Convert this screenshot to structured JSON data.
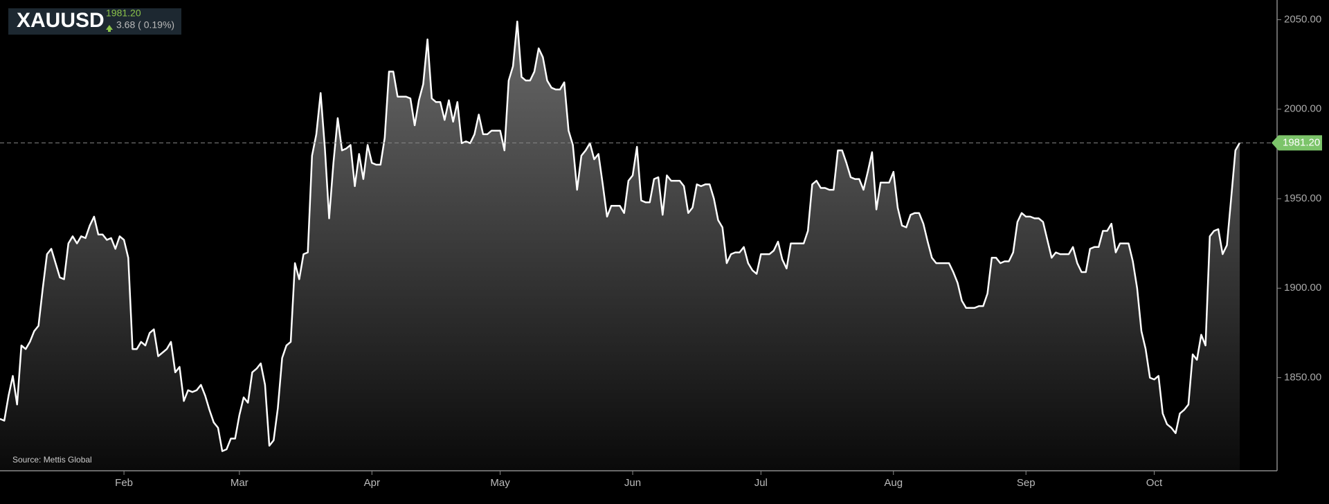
{
  "chart_data": {
    "type": "area",
    "title": "XAUUSD",
    "last_price": {
      "value": 1981.2,
      "label": "1981.20"
    },
    "change": "3.68 ( 0.19%)",
    "source": "Source: Mettis Global",
    "color": "#ffffff",
    "categories": [
      null,
      null,
      null,
      null,
      null,
      null,
      null,
      null,
      null,
      null,
      null,
      null,
      null,
      null,
      null,
      null,
      null,
      null,
      null,
      null,
      null,
      null,
      null,
      null,
      null,
      null,
      null,
      null,
      null,
      "Feb",
      null,
      null,
      null,
      null,
      null,
      null,
      null,
      null,
      null,
      null,
      null,
      null,
      null,
      null,
      null,
      null,
      null,
      null,
      null,
      null,
      null,
      null,
      null,
      null,
      null,
      null,
      "Mar",
      null,
      null,
      null,
      null,
      null,
      null,
      null,
      null,
      null,
      null,
      null,
      null,
      null,
      null,
      null,
      null,
      null,
      null,
      null,
      null,
      null,
      null,
      null,
      null,
      null,
      null,
      null,
      null,
      null,
      null,
      "Apr",
      null,
      null,
      null,
      null,
      null,
      null,
      null,
      null,
      null,
      null,
      null,
      null,
      null,
      null,
      null,
      null,
      null,
      null,
      null,
      null,
      null,
      null,
      null,
      null,
      null,
      null,
      null,
      null,
      null,
      "May",
      null,
      null,
      null,
      null,
      null,
      null,
      null,
      null,
      null,
      null,
      null,
      null,
      null,
      null,
      null,
      null,
      null,
      null,
      null,
      null,
      null,
      null,
      null,
      null,
      null,
      null,
      null,
      null,
      null,
      null,
      "Jun",
      null,
      null,
      null,
      null,
      null,
      null,
      null,
      null,
      null,
      null,
      null,
      null,
      null,
      null,
      null,
      null,
      null,
      null,
      null,
      null,
      null,
      null,
      null,
      null,
      null,
      null,
      null,
      null,
      null,
      "Jul",
      null,
      null,
      null,
      null,
      null,
      null,
      null,
      null,
      null,
      null,
      null,
      null,
      null,
      null,
      null,
      null,
      null,
      null,
      null,
      null,
      null,
      null,
      null,
      null,
      null,
      null,
      null,
      null,
      null,
      null,
      "Aug",
      null,
      null,
      null,
      null,
      null,
      null,
      null,
      null,
      null,
      null,
      null,
      null,
      null,
      null,
      null,
      null,
      null,
      null,
      null,
      null,
      null,
      null,
      null,
      null,
      null,
      null,
      null,
      null,
      null,
      null,
      "Sep",
      null,
      null,
      null,
      null,
      null,
      null,
      null,
      null,
      null,
      null,
      null,
      null,
      null,
      null,
      null,
      null,
      null,
      null,
      null,
      null,
      null,
      null,
      null,
      null,
      null,
      null,
      null,
      null,
      null,
      "Oct",
      null,
      null,
      null,
      null,
      null,
      null,
      null,
      null,
      null,
      null,
      null,
      null,
      null,
      null,
      null,
      null,
      null,
      null,
      null,
      null
    ],
    "values": [
      1827,
      1826,
      1840,
      1851,
      1835,
      1868,
      1866,
      1870,
      1876,
      1879,
      1900,
      1919,
      1922,
      1914,
      1906,
      1905,
      1925,
      1929,
      1925,
      1929,
      1928,
      1935,
      1940,
      1930,
      1930,
      1927,
      1928,
      1922,
      1929,
      1927,
      1917,
      1866,
      1866,
      1870,
      1868,
      1875,
      1877,
      1862,
      1864,
      1866,
      1870,
      1853,
      1856,
      1837,
      1843,
      1842,
      1843,
      1846,
      1840,
      1832,
      1825,
      1822,
      1809,
      1810,
      1816,
      1816,
      1829,
      1839,
      1836,
      1853,
      1855,
      1858,
      1846,
      1812,
      1815,
      1833,
      1861,
      1868,
      1870,
      1914,
      1905,
      1919,
      1920,
      1974,
      1986,
      2009,
      1978,
      1939,
      1970,
      1995,
      1977,
      1978,
      1980,
      1957,
      1975,
      1961,
      1980,
      1970,
      1969,
      1969,
      1984,
      2021,
      2021,
      2007,
      2007,
      2007,
      2006,
      1991,
      2005,
      2014,
      2039,
      2006,
      2004,
      2004,
      1994,
      2005,
      1993,
      2004,
      1981,
      1982,
      1981,
      1986,
      1997,
      1986,
      1986,
      1988,
      1988,
      1988,
      1977,
      2016,
      2024,
      2049,
      2018,
      2016,
      2016,
      2021,
      2034,
      2029,
      2016,
      2012,
      2011,
      2011,
      2015,
      1988,
      1980,
      1955,
      1974,
      1977,
      1981,
      1972,
      1975,
      1958,
      1940,
      1946,
      1946,
      1946,
      1942,
      1960,
      1963,
      1979,
      1949,
      1948,
      1948,
      1961,
      1962,
      1941,
      1963,
      1960,
      1960,
      1960,
      1957,
      1942,
      1945,
      1958,
      1957,
      1958,
      1958,
      1950,
      1938,
      1934,
      1914,
      1919,
      1920,
      1920,
      1923,
      1914,
      1910,
      1908,
      1919,
      1919,
      1919,
      1921,
      1926,
      1916,
      1911,
      1925,
      1925,
      1925,
      1925,
      1932,
      1958,
      1960,
      1956,
      1956,
      1955,
      1955,
      1977,
      1977,
      1970,
      1962,
      1961,
      1961,
      1955,
      1965,
      1976,
      1944,
      1959,
      1959,
      1959,
      1965,
      1945,
      1935,
      1934,
      1941,
      1942,
      1942,
      1936,
      1926,
      1917,
      1914,
      1914,
      1914,
      1914,
      1909,
      1903,
      1893,
      1889,
      1889,
      1889,
      1890,
      1890,
      1897,
      1917,
      1917,
      1914,
      1915,
      1915,
      1920,
      1937,
      1942,
      1940,
      1940,
      1939,
      1939,
      1937,
      1927,
      1917,
      1920,
      1919,
      1919,
      1919,
      1923,
      1914,
      1909,
      1909,
      1922,
      1923,
      1923,
      1932,
      1932,
      1936,
      1920,
      1925,
      1925,
      1925,
      1915,
      1900,
      1876,
      1866,
      1850,
      1849,
      1851,
      1830,
      1824,
      1822,
      1819,
      1830,
      1832,
      1835,
      1863,
      1860,
      1874,
      1868,
      1929,
      1932,
      1933,
      1919,
      1924,
      1950,
      1977,
      1981.2
    ],
    "ylim": [
      1798,
      2061
    ],
    "yticks": [
      {
        "value": 1850,
        "label": "1850.00"
      },
      {
        "value": 1900,
        "label": "1900.00"
      },
      {
        "value": 1950,
        "label": "1950.00"
      },
      {
        "value": 2000,
        "label": "2000.00"
      },
      {
        "value": 2050,
        "label": "2050.00"
      }
    ],
    "y_axis_side": "right"
  }
}
